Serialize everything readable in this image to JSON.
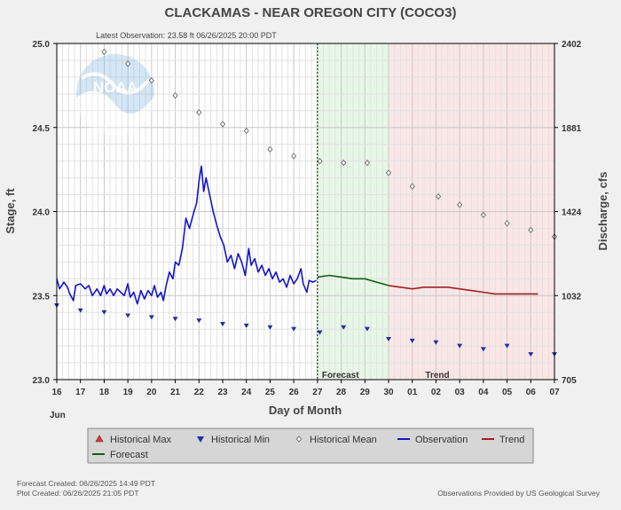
{
  "chart_data": {
    "type": "line",
    "title": "CLACKAMAS - NEAR OREGON CITY  (COCO3)",
    "subtitle": "Latest Observation: 23.58 ft 06/26/2025 20:00 PDT",
    "xlabel": "Day of Month",
    "x_month_label": "Jun",
    "ylabel_left": "Stage, ft",
    "ylabel_right": "Discharge, cfs",
    "x_ticks": [
      "16",
      "17",
      "18",
      "19",
      "20",
      "21",
      "22",
      "23",
      "24",
      "25",
      "26",
      "27",
      "28",
      "29",
      "30",
      "01",
      "02",
      "03",
      "04",
      "05",
      "06",
      "07"
    ],
    "x_range_days": [
      16,
      37
    ],
    "y_ticks_left": [
      "23.0",
      "23.5",
      "24.0",
      "24.5",
      "25.0"
    ],
    "ylim_left": [
      23.0,
      25.0
    ],
    "y_ticks_right": [
      "705",
      "1032",
      "1424",
      "1881",
      "2402"
    ],
    "now_day": 27.0,
    "forecast_region": {
      "label": "Forecast",
      "from_day": 27.0,
      "to_day": 30.0,
      "color": "#e6f7e6"
    },
    "trend_region": {
      "label": "Trend",
      "from_day": 30.0,
      "to_day": 37.0,
      "color": "#fbe6e6"
    },
    "legend": [
      {
        "name": "Historical Max",
        "symbol": "triangle-up",
        "color": "#d04040"
      },
      {
        "name": "Historical Min",
        "symbol": "triangle-down",
        "color": "#2030a0"
      },
      {
        "name": "Historical Mean",
        "symbol": "diamond",
        "color": "#666666"
      },
      {
        "name": "Observation",
        "symbol": "line",
        "color": "#1515c8"
      },
      {
        "name": "Trend",
        "symbol": "line",
        "color": "#a02020"
      },
      {
        "name": "Forecast",
        "symbol": "line",
        "color": "#106010"
      }
    ],
    "series": [
      {
        "name": "Historical Mean",
        "style": "diamond",
        "color": "#666666",
        "points": [
          [
            18.0,
            24.95
          ],
          [
            19.0,
            24.88
          ],
          [
            20.0,
            24.78
          ],
          [
            21.0,
            24.69
          ],
          [
            22.0,
            24.59
          ],
          [
            23.0,
            24.52
          ],
          [
            24.0,
            24.48
          ],
          [
            25.0,
            24.37
          ],
          [
            26.0,
            24.33
          ],
          [
            27.1,
            24.3
          ],
          [
            28.1,
            24.29
          ],
          [
            29.1,
            24.29
          ],
          [
            30.0,
            24.23
          ],
          [
            31.0,
            24.15
          ],
          [
            32.1,
            24.09
          ],
          [
            33.0,
            24.04
          ],
          [
            34.0,
            23.98
          ],
          [
            35.0,
            23.93
          ],
          [
            36.0,
            23.89
          ],
          [
            37.0,
            23.85
          ]
        ]
      },
      {
        "name": "Historical Min",
        "style": "triangle-down",
        "color": "#2030a0",
        "points": [
          [
            16.0,
            23.44
          ],
          [
            17.0,
            23.41
          ],
          [
            18.0,
            23.4
          ],
          [
            19.0,
            23.38
          ],
          [
            20.0,
            23.37
          ],
          [
            21.0,
            23.36
          ],
          [
            22.0,
            23.35
          ],
          [
            23.0,
            23.33
          ],
          [
            24.0,
            23.32
          ],
          [
            25.0,
            23.31
          ],
          [
            26.0,
            23.3
          ],
          [
            27.1,
            23.28
          ],
          [
            28.1,
            23.31
          ],
          [
            29.1,
            23.3
          ],
          [
            30.0,
            23.24
          ],
          [
            31.0,
            23.23
          ],
          [
            32.0,
            23.22
          ],
          [
            33.0,
            23.2
          ],
          [
            34.0,
            23.18
          ],
          [
            35.0,
            23.2
          ],
          [
            36.0,
            23.15
          ],
          [
            37.0,
            23.15
          ]
        ]
      },
      {
        "name": "Observation",
        "style": "line",
        "color": "#1515c8",
        "points": [
          [
            16.0,
            23.6
          ],
          [
            16.12,
            23.54
          ],
          [
            16.3,
            23.58
          ],
          [
            16.45,
            23.55
          ],
          [
            16.55,
            23.51
          ],
          [
            16.7,
            23.47
          ],
          [
            16.8,
            23.56
          ],
          [
            17.0,
            23.57
          ],
          [
            17.2,
            23.54
          ],
          [
            17.35,
            23.56
          ],
          [
            17.5,
            23.5
          ],
          [
            17.7,
            23.54
          ],
          [
            17.85,
            23.5
          ],
          [
            18.0,
            23.56
          ],
          [
            18.1,
            23.51
          ],
          [
            18.25,
            23.54
          ],
          [
            18.4,
            23.5
          ],
          [
            18.55,
            23.54
          ],
          [
            18.7,
            23.52
          ],
          [
            18.85,
            23.5
          ],
          [
            19.0,
            23.57
          ],
          [
            19.1,
            23.49
          ],
          [
            19.25,
            23.52
          ],
          [
            19.4,
            23.45
          ],
          [
            19.55,
            23.53
          ],
          [
            19.7,
            23.48
          ],
          [
            19.85,
            23.53
          ],
          [
            20.0,
            23.5
          ],
          [
            20.12,
            23.56
          ],
          [
            20.25,
            23.49
          ],
          [
            20.4,
            23.52
          ],
          [
            20.5,
            23.47
          ],
          [
            20.6,
            23.55
          ],
          [
            20.75,
            23.64
          ],
          [
            20.9,
            23.6
          ],
          [
            21.0,
            23.7
          ],
          [
            21.15,
            23.68
          ],
          [
            21.3,
            23.78
          ],
          [
            21.45,
            23.96
          ],
          [
            21.6,
            23.9
          ],
          [
            21.75,
            23.98
          ],
          [
            21.9,
            24.05
          ],
          [
            22.0,
            24.18
          ],
          [
            22.1,
            24.27
          ],
          [
            22.2,
            24.12
          ],
          [
            22.3,
            24.2
          ],
          [
            22.45,
            24.1
          ],
          [
            22.6,
            24.0
          ],
          [
            22.75,
            23.92
          ],
          [
            22.9,
            23.85
          ],
          [
            23.05,
            23.8
          ],
          [
            23.2,
            23.7
          ],
          [
            23.35,
            23.74
          ],
          [
            23.5,
            23.66
          ],
          [
            23.65,
            23.75
          ],
          [
            23.8,
            23.7
          ],
          [
            23.95,
            23.62
          ],
          [
            24.1,
            23.78
          ],
          [
            24.2,
            23.68
          ],
          [
            24.35,
            23.72
          ],
          [
            24.5,
            23.64
          ],
          [
            24.65,
            23.68
          ],
          [
            24.8,
            23.62
          ],
          [
            24.95,
            23.66
          ],
          [
            25.1,
            23.6
          ],
          [
            25.25,
            23.64
          ],
          [
            25.4,
            23.58
          ],
          [
            25.55,
            23.6
          ],
          [
            25.7,
            23.55
          ],
          [
            25.85,
            23.62
          ],
          [
            26.0,
            23.57
          ],
          [
            26.15,
            23.6
          ],
          [
            26.3,
            23.66
          ],
          [
            26.4,
            23.57
          ],
          [
            26.55,
            23.52
          ],
          [
            26.65,
            23.59
          ],
          [
            26.8,
            23.58
          ],
          [
            26.95,
            23.59
          ]
        ]
      },
      {
        "name": "Forecast",
        "style": "line",
        "color": "#106010",
        "points": [
          [
            27.0,
            23.61
          ],
          [
            27.5,
            23.62
          ],
          [
            28.0,
            23.61
          ],
          [
            28.5,
            23.6
          ],
          [
            29.0,
            23.6
          ],
          [
            29.5,
            23.58
          ],
          [
            30.0,
            23.56
          ]
        ]
      },
      {
        "name": "Trend",
        "style": "line",
        "color": "#a02020",
        "points": [
          [
            30.0,
            23.56
          ],
          [
            30.5,
            23.55
          ],
          [
            31.0,
            23.54
          ],
          [
            31.5,
            23.55
          ],
          [
            32.0,
            23.55
          ],
          [
            32.5,
            23.55
          ],
          [
            33.0,
            23.54
          ],
          [
            33.5,
            23.53
          ],
          [
            34.0,
            23.52
          ],
          [
            34.5,
            23.51
          ],
          [
            35.0,
            23.51
          ],
          [
            35.5,
            23.51
          ],
          [
            36.0,
            23.51
          ],
          [
            36.3,
            23.51
          ]
        ]
      }
    ],
    "grid": true
  },
  "footer": {
    "forecast_created": "Forecast Created: 06/26/2025 14:49 PDT",
    "plot_created": "Plot Created: 06/26/2025 21:05 PDT",
    "credit": "Observations Provided by US Geological Survey"
  },
  "logo": {
    "text": "NOAA"
  }
}
